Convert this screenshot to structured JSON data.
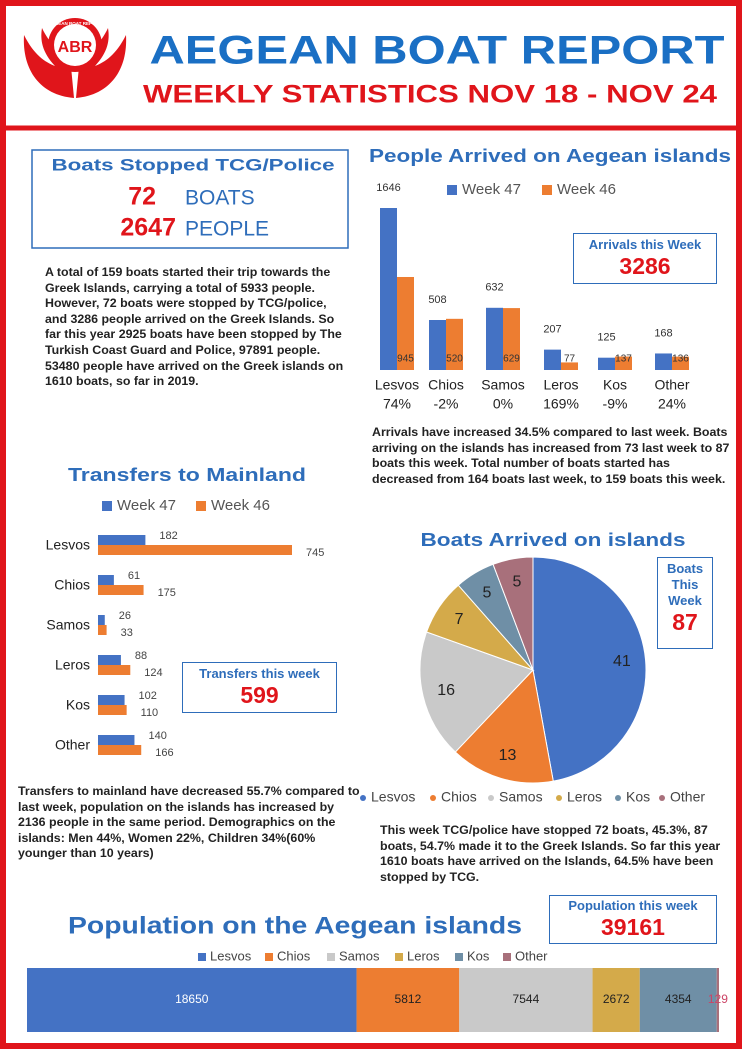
{
  "header": {
    "logo": "ABR",
    "logo_arc": "AEGEAN BOAT REPORT",
    "title": "AEGEAN BOAT REPORT",
    "subtitle": "WEEKLY STATISTICS NOV 18 - NOV 24"
  },
  "stopped": {
    "title": "Boats Stopped TCG/Police",
    "boats": 72,
    "boats_unit": "BOATS",
    "people": 2647,
    "people_unit": "PEOPLE"
  },
  "paragraphs": [
    "A total of 159  boats started their trip towards the Greek Islands, carrying a total of 5933 people. However, 72 boats were stopped by TCG/police, and 3286 people arrived on the Greek Islands. So far this year 2925 boats have been stopped by The Turkish Coast Guard and Police, 97891 people. 53480 people have arrived on the Greek islands on 1610 boats, so far in 2019.",
    "Arrivals have increased 34.5% compared to last week. Boats arriving on the islands has increased from 73 last week to 87 boats this week. Total number of boats started has decreased from 164 boats last week, to 159 boats this week.",
    "Transfers to mainland have decreased 55.7% compared to last week, population on the islands has increased by 2136 people in the same period. Demographics on the islands: Men 44%, Women 22%, Children 34%(60% younger than 10 years)",
    "This week TCG/police have stopped 72 boats, 45.3%, 87 boats, 54.7% made it to the Greek Islands. So far this year 1610 boats have arrived on the Islands, 64.5% have been stopped by TCG."
  ],
  "boxes": [
    {
      "label": "Arrivals this Week",
      "value": 3286
    },
    {
      "label": "Transfers this week",
      "value": 599
    },
    {
      "label": "Boats This Week",
      "value": 87
    },
    {
      "label": "Population this week",
      "value": 39161
    }
  ],
  "chart_data": [
    {
      "type": "bar",
      "title": "People Arrived on Aegean islands",
      "categories": [
        "Lesvos",
        "Chios",
        "Samos",
        "Leros",
        "Kos",
        "Other"
      ],
      "category_notes": [
        "74%",
        "-2%",
        "0%",
        "169%",
        "-9%",
        "24%"
      ],
      "series": [
        {
          "name": "Week 47",
          "color": "#4472c4",
          "values": [
            1646,
            508,
            632,
            207,
            125,
            168
          ]
        },
        {
          "name": "Week 46",
          "color": "#ed7d31",
          "values": [
            945,
            520,
            629,
            77,
            137,
            136
          ]
        }
      ]
    },
    {
      "type": "hbar",
      "title": "Transfers to Mainland",
      "categories": [
        "Lesvos",
        "Chios",
        "Samos",
        "Leros",
        "Kos",
        "Other"
      ],
      "series": [
        {
          "name": "Week 47",
          "color": "#4472c4",
          "values": [
            182,
            61,
            26,
            88,
            102,
            140
          ]
        },
        {
          "name": "Week 46",
          "color": "#ed7d31",
          "values": [
            745,
            175,
            33,
            124,
            110,
            166
          ]
        }
      ]
    },
    {
      "type": "pie",
      "title": "Boats Arrived on islands",
      "categories": [
        "Lesvos",
        "Chios",
        "Samos",
        "Leros",
        "Kos",
        "Other"
      ],
      "values": [
        41,
        13,
        16,
        7,
        5,
        5
      ],
      "colors": [
        "#4472c4",
        "#ed7d31",
        "#c9c9c9",
        "#d4aa4a",
        "#6f8fa6",
        "#a8707b"
      ]
    },
    {
      "type": "stacked_bar",
      "title": "Population on the Aegean islands",
      "series": [
        {
          "name": "Lesvos",
          "color": "#4472c4",
          "values": [
            18650
          ]
        },
        {
          "name": "Chios",
          "color": "#ed7d31",
          "values": [
            5812
          ]
        },
        {
          "name": "Samos",
          "color": "#c9c9c9",
          "values": [
            7544
          ]
        },
        {
          "name": "Leros",
          "color": "#d4aa4a",
          "values": [
            2672
          ]
        },
        {
          "name": "Kos",
          "color": "#6f8fa6",
          "values": [
            4354
          ]
        },
        {
          "name": "Other",
          "color": "#a8707b",
          "values": [
            129
          ]
        }
      ]
    }
  ]
}
